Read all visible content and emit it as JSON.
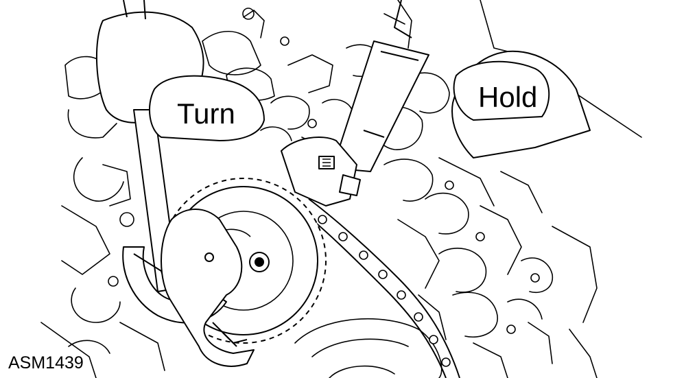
{
  "labels": {
    "turn": "Turn",
    "hold": "Hold",
    "figure_code": "ASM1439"
  },
  "colors": {
    "ink": "#000000",
    "background": "#ffffff"
  }
}
